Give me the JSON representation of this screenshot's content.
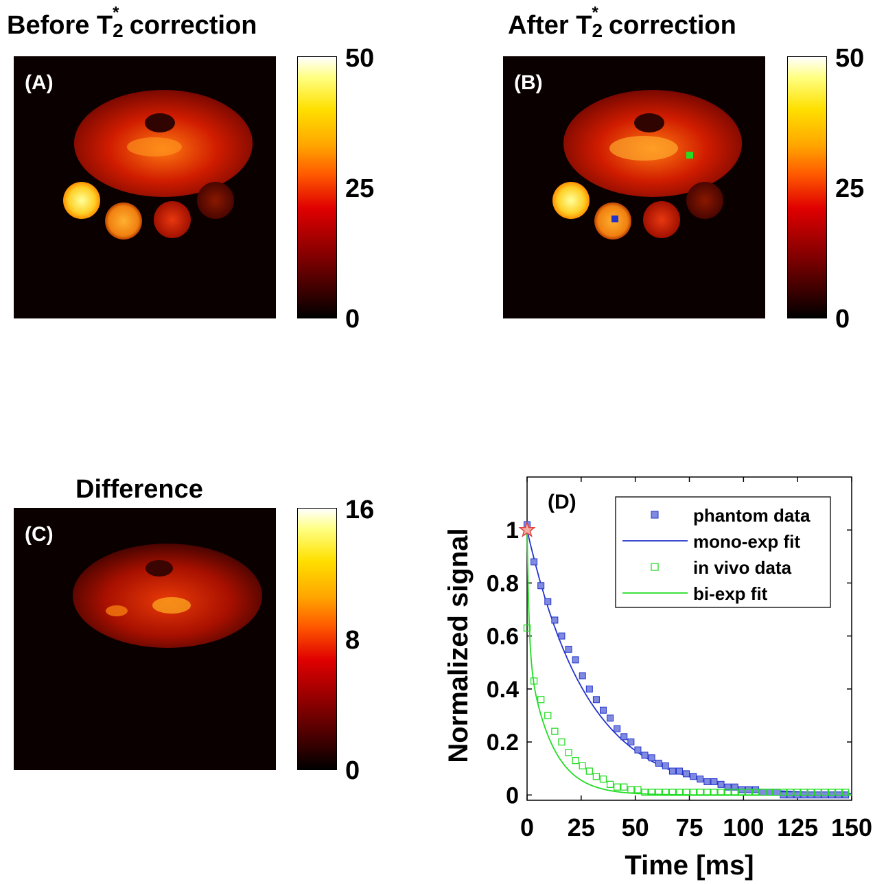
{
  "panels": {
    "a": {
      "title_prefix": "Before T",
      "title_sup": "*",
      "title_sub": "2",
      "title_suffix": " correction",
      "label": "(A)",
      "colorbar_ticks": [
        "50",
        "25",
        "0"
      ]
    },
    "b": {
      "title_prefix": "After T",
      "title_sup": "*",
      "title_sub": "2",
      "title_suffix": " correction",
      "label": "(B)",
      "colorbar_ticks": [
        "50",
        "25",
        "0"
      ]
    },
    "c": {
      "title": "Difference",
      "label": "(C)",
      "colorbar_ticks": [
        "16",
        "8",
        "0"
      ]
    }
  },
  "colormap": "hot",
  "chart_data": {
    "type": "scatter",
    "label": "(D)",
    "xlabel": "Time [ms]",
    "ylabel": "Normalized signal",
    "xlim": [
      0,
      150
    ],
    "ylim": [
      -0.02,
      1.2
    ],
    "xticks": [
      "0",
      "25",
      "50",
      "75",
      "100",
      "125",
      "150"
    ],
    "yticks": [
      "0",
      "0.2",
      "0.4",
      "0.6",
      "0.8",
      "1"
    ],
    "legend_position": "top-right",
    "legend": [
      "phantom data",
      "mono-exp fit",
      "in vivo data",
      "bi-exp fit"
    ],
    "colors": {
      "phantom": "#2233cc",
      "invivo": "#22dd22",
      "star": "#e04040"
    },
    "series": [
      {
        "name": "phantom data",
        "marker": "filled-square",
        "x": [
          0,
          3.2,
          6.4,
          9.6,
          12.8,
          16,
          19.2,
          22.4,
          25.6,
          28.8,
          32,
          35.2,
          38.4,
          41.6,
          44.8,
          48,
          51.2,
          54.4,
          57.6,
          60.8,
          64,
          67.2,
          70.4,
          73.6,
          76.8,
          80,
          83.2,
          86.4,
          89.6,
          92.8,
          96,
          99.2,
          102.4,
          105.6,
          108.8,
          112,
          115.2,
          118.4,
          121.6,
          124.8,
          128,
          131.2,
          134.4,
          137.6,
          140.8,
          144,
          147.2
        ],
        "y": [
          1.02,
          0.88,
          0.79,
          0.73,
          0.66,
          0.6,
          0.55,
          0.51,
          0.45,
          0.4,
          0.36,
          0.32,
          0.29,
          0.25,
          0.22,
          0.2,
          0.17,
          0.15,
          0.14,
          0.12,
          0.11,
          0.09,
          0.09,
          0.08,
          0.07,
          0.06,
          0.05,
          0.05,
          0.04,
          0.03,
          0.03,
          0.02,
          0.02,
          0.02,
          0.01,
          0.01,
          0.01,
          0.0,
          0.0,
          0.0,
          0.0,
          0.0,
          0.0,
          0.0,
          0.0,
          0.0,
          0.0
        ]
      },
      {
        "name": "mono-exp fit",
        "type": "line",
        "model": "mono-exp",
        "amplitude": 1.0,
        "t2": 28
      },
      {
        "name": "in vivo data",
        "marker": "open-square",
        "x": [
          0,
          3.2,
          6.4,
          9.6,
          12.8,
          16,
          19.2,
          22.4,
          25.6,
          28.8,
          32,
          35.2,
          38.4,
          41.6,
          44.8,
          48,
          51.2,
          54.4,
          57.6,
          60.8,
          64,
          67.2,
          70.4,
          73.6,
          76.8,
          80,
          83.2,
          86.4,
          89.6,
          92.8,
          96,
          99.2,
          102.4,
          105.6,
          108.8,
          112,
          115.2,
          118.4,
          121.6,
          124.8,
          128,
          131.2,
          134.4,
          137.6,
          140.8,
          144,
          147.2
        ],
        "y": [
          0.63,
          0.43,
          0.36,
          0.3,
          0.24,
          0.2,
          0.16,
          0.13,
          0.11,
          0.09,
          0.07,
          0.06,
          0.04,
          0.03,
          0.03,
          0.02,
          0.02,
          0.01,
          0.01,
          0.01,
          0.01,
          0.01,
          0.01,
          0.01,
          0.01,
          0.01,
          0.01,
          0.01,
          0.01,
          0.01,
          0.01,
          0.01,
          0.01,
          0.01,
          0.01,
          0.01,
          0.01,
          0.01,
          0.01,
          0.01,
          0.01,
          0.01,
          0.01,
          0.01,
          0.01,
          0.01,
          0.01
        ]
      },
      {
        "name": "bi-exp fit",
        "type": "line",
        "model": "bi-exp",
        "a_fast": 0.46,
        "t2_fast": 0.9,
        "a_slow": 0.54,
        "t2_slow": 11
      }
    ],
    "star_point": {
      "x": 0,
      "y": 1.0
    }
  }
}
